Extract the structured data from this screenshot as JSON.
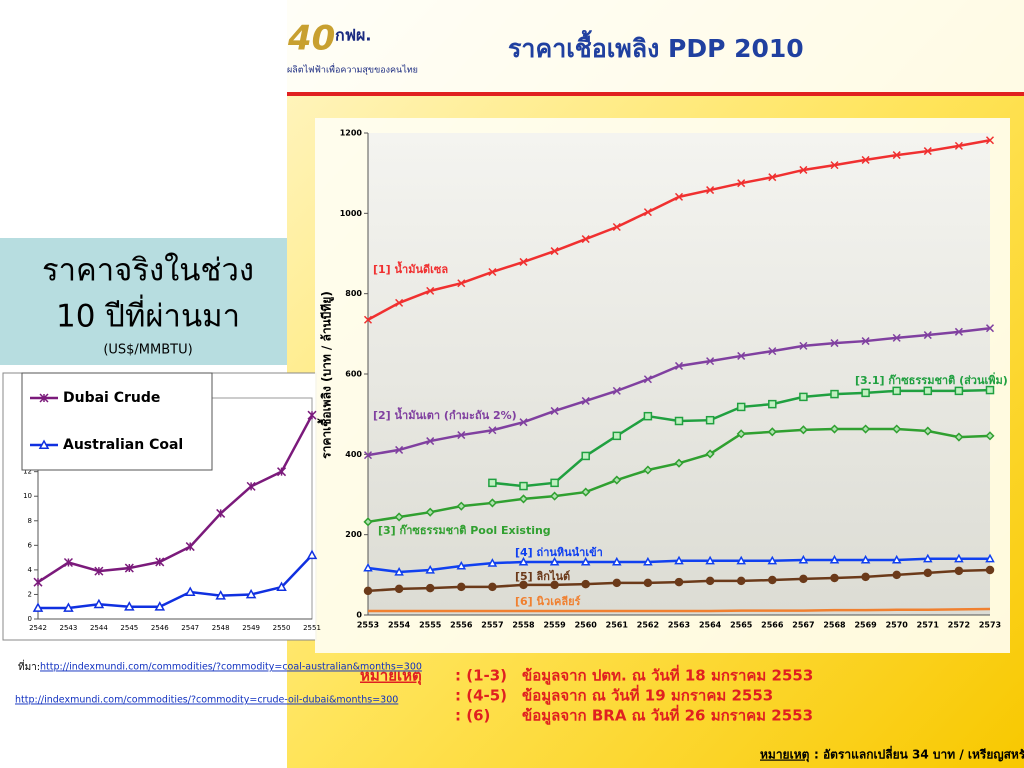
{
  "header": {
    "logo_number": "40",
    "logo_org": "กฟผ.",
    "logo_tagline": "ผลิตไฟฟ้าเพื่อความสุขของคนไทย",
    "title": "ราคาเชื้อเพลิง PDP 2010"
  },
  "left_box": {
    "title_lines": [
      "ราคาจริงในช่วง",
      "10 ปีที่ผ่านมา"
    ],
    "subtitle": "(US$/MMBTU)"
  },
  "source": {
    "label": "ที่มา:",
    "links": [
      "http://indexmundi.com/commodities/?commodity=coal-australian&months=300",
      "http://indexmundi.com/commodities/?commodity=crude-oil-dubai&months=300"
    ]
  },
  "notes": {
    "label": "หมายเหตุ",
    "rows": [
      [
        ": (1-3)",
        "ข้อมูลจาก ปตท. ณ วันที่ 18 มกราคม 2553"
      ],
      [
        ": (4-5)",
        "ข้อมูลจาก ณ วันที่ 19 มกราคม 2553"
      ],
      [
        ": (6)",
        "ข้อมูลจาก BRA ณ วันที่ 26 มกราคม 2553"
      ]
    ]
  },
  "footer": {
    "label": "หมายเหตุ",
    "text": ": อัตราแลกเปลี่ยน 34 บาท / เหรียญสหรัฐฯ"
  },
  "chart_data": [
    {
      "type": "line",
      "categories": [
        "2542",
        "2543",
        "2544",
        "2545",
        "2546",
        "2547",
        "2548",
        "2549",
        "2550",
        "2551"
      ],
      "ylim": [
        0,
        18
      ],
      "yticks": [
        0,
        2,
        4,
        6,
        8,
        10,
        12
      ],
      "legend": "top-left",
      "series": [
        {
          "name": "Dubai Crude",
          "color": "#7b1a7b",
          "marker": "star",
          "values": [
            3.0,
            4.6,
            3.9,
            4.15,
            4.65,
            5.9,
            8.6,
            10.8,
            12.0,
            16.6
          ]
        },
        {
          "name": "Australian Coal",
          "color": "#1030e0",
          "marker": "triangle",
          "values": [
            0.9,
            0.9,
            1.2,
            1.0,
            1.0,
            2.2,
            1.9,
            2.0,
            2.6,
            5.2
          ]
        }
      ]
    },
    {
      "type": "line",
      "y_label": "ราคาเชื้อเพลิง (บาท / ล้านบีทียู)",
      "categories": [
        "2553",
        "2554",
        "2555",
        "2556",
        "2557",
        "2558",
        "2559",
        "2560",
        "2561",
        "2562",
        "2563",
        "2564",
        "2565",
        "2566",
        "2567",
        "2568",
        "2569",
        "2570",
        "2571",
        "2572",
        "2573"
      ],
      "ylim": [
        0,
        1200
      ],
      "yticks": [
        0,
        200,
        400,
        600,
        800,
        1000,
        1200
      ],
      "grid": false,
      "series": [
        {
          "name": "[1] น้ำมันดีเซล",
          "color": "#f03030",
          "marker": "cross",
          "values": [
            735,
            777,
            807,
            826,
            854,
            879,
            906,
            936,
            966,
            1003,
            1041,
            1058,
            1075,
            1090,
            1108,
            1120,
            1133,
            1145,
            1155,
            1168,
            1182
          ]
        },
        {
          "name": "[2] น้ำมันเตา (กำมะถัน 2%)",
          "color": "#8040a0",
          "marker": "cross",
          "values": [
            398,
            411,
            433,
            448,
            460,
            480,
            508,
            533,
            558,
            587,
            620,
            632,
            645,
            657,
            670,
            677,
            682,
            690,
            697,
            705,
            714
          ]
        },
        {
          "name": "[3] ก๊าซธรรมชาติ Pool Existing",
          "color": "#30a030",
          "marker": "diamond",
          "values": [
            232,
            244,
            256,
            271,
            279,
            289,
            296,
            306,
            336,
            361,
            378,
            401,
            451,
            456,
            461,
            463,
            463,
            463,
            458,
            443,
            446
          ]
        },
        {
          "name": "[3.1] ก๊าซธรรมชาติ (ส่วนเพิ่ม)",
          "color": "#20a040",
          "marker": "square",
          "values": [
            null,
            null,
            null,
            null,
            329,
            321,
            329,
            396,
            446,
            495,
            483,
            485,
            518,
            525,
            543,
            550,
            553,
            558,
            558,
            558,
            560
          ]
        },
        {
          "name": "[4] ถ่านหินนำเข้า",
          "color": "#1040f0",
          "marker": "triangle",
          "values": [
            117,
            107,
            112,
            122,
            129,
            132,
            132,
            132,
            132,
            132,
            135,
            135,
            135,
            135,
            137,
            137,
            137,
            137,
            140,
            140,
            140
          ]
        },
        {
          "name": "[5] ลิกไนต์",
          "color": "#6b3a1a",
          "marker": "circle",
          "values": [
            60,
            65,
            67,
            70,
            70,
            75,
            75,
            77,
            80,
            80,
            82,
            85,
            85,
            87,
            90,
            92,
            95,
            100,
            105,
            110,
            112
          ]
        },
        {
          "name": "[6] นิวเคลียร์",
          "color": "#f08030",
          "marker": "none",
          "values": [
            10,
            10,
            10,
            10,
            10,
            10,
            10,
            10,
            10,
            10,
            10,
            10,
            11,
            11,
            11,
            12,
            12,
            13,
            13,
            14,
            15
          ]
        }
      ]
    }
  ]
}
